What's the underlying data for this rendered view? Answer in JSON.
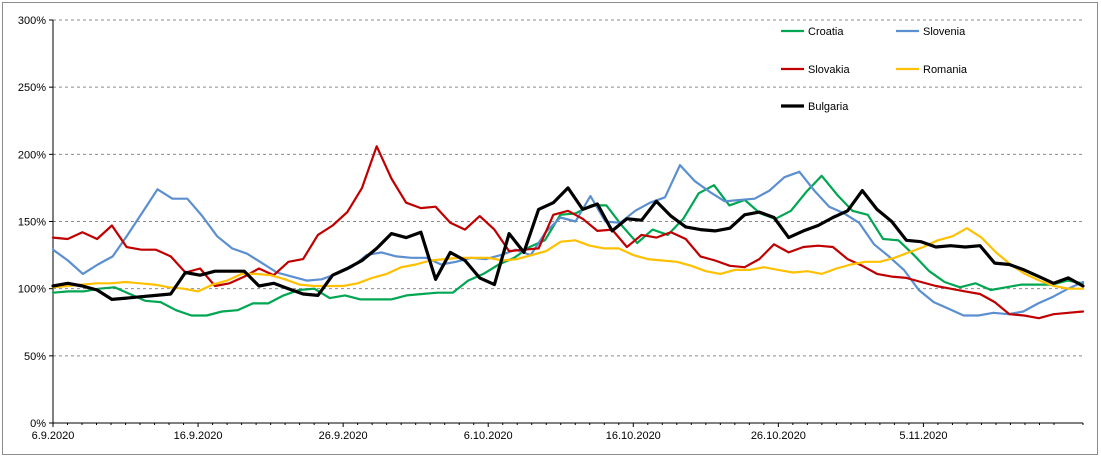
{
  "chart_data": {
    "type": "line",
    "title": "",
    "xlabel": "",
    "ylabel": "",
    "x_start": "2020-09-06",
    "x_end": "2020-11-16",
    "x_tick_labels": [
      "6.9.2020",
      "16.9.2020",
      "26.9.2020",
      "6.10.2020",
      "16.10.2020",
      "26.10.2020",
      "5.11.2020"
    ],
    "y_tick_labels": [
      "0%",
      "50%",
      "100%",
      "150%",
      "200%",
      "250%",
      "300%"
    ],
    "ylim": [
      0,
      300
    ],
    "y_unit": "%",
    "grid": "horizontal dashed",
    "legend_position": "top-right",
    "series": [
      {
        "name": "Croatia",
        "color": "#00a651",
        "stroke": "normal",
        "values": [
          97,
          98,
          98,
          100,
          101,
          96,
          91,
          90,
          84,
          80,
          80,
          83,
          84,
          89,
          89,
          95,
          99,
          100,
          93,
          95,
          92,
          92,
          92,
          95,
          96,
          97,
          97,
          106,
          111,
          118,
          123,
          131,
          136,
          155,
          156,
          162,
          162,
          147,
          134,
          144,
          140,
          152,
          171,
          177,
          162,
          166,
          156,
          152,
          158,
          172,
          184,
          170,
          158,
          155,
          137,
          136,
          125,
          113,
          105,
          101,
          104,
          99,
          101,
          103,
          103,
          103,
          106,
          104
        ]
      },
      {
        "name": "Slovenia",
        "color": "#5b8fd0",
        "stroke": "normal",
        "values": [
          129,
          121,
          111,
          118,
          124,
          140,
          157,
          174,
          167,
          167,
          154,
          139,
          130,
          126,
          119,
          112,
          109,
          106,
          107,
          111,
          116,
          125,
          127,
          124,
          123,
          123,
          118,
          120,
          123,
          122,
          125,
          129,
          125,
          142,
          153,
          150,
          169,
          150,
          149,
          158,
          164,
          168,
          192,
          180,
          172,
          165,
          166,
          167,
          173,
          183,
          187,
          173,
          161,
          156,
          149,
          133,
          124,
          114,
          99,
          90,
          85,
          80,
          80,
          82,
          81,
          83,
          89,
          94,
          100,
          105
        ]
      },
      {
        "name": "Slovakia",
        "color": "#c00000",
        "stroke": "normal",
        "values": [
          138,
          137,
          142,
          137,
          147,
          131,
          129,
          129,
          124,
          112,
          115,
          102,
          104,
          109,
          115,
          110,
          120,
          122,
          140,
          147,
          157,
          175,
          206,
          182,
          164,
          160,
          161,
          149,
          144,
          154,
          144,
          128,
          129,
          130,
          155,
          158,
          152,
          143,
          144,
          131,
          140,
          138,
          142,
          137,
          124,
          121,
          117,
          116,
          122,
          133,
          127,
          131,
          132,
          131,
          122,
          117,
          111,
          109,
          108,
          105,
          102,
          100,
          98,
          96,
          90,
          81,
          80,
          78,
          81,
          82,
          83
        ]
      },
      {
        "name": "Romania",
        "color": "#ffc000",
        "stroke": "normal",
        "values": [
          101,
          102,
          103,
          104,
          104,
          105,
          104,
          103,
          101,
          100,
          98,
          103,
          106,
          111,
          111,
          110,
          107,
          103,
          102,
          102,
          102,
          104,
          108,
          111,
          116,
          118,
          121,
          122,
          123,
          123,
          123,
          121,
          122,
          125,
          128,
          135,
          136,
          132,
          130,
          130,
          125,
          122,
          121,
          120,
          117,
          113,
          111,
          114,
          114,
          116,
          114,
          112,
          113,
          111,
          115,
          118,
          120,
          120,
          123,
          127,
          131,
          136,
          139,
          145,
          138,
          127,
          118,
          111,
          106,
          102,
          100,
          100
        ]
      },
      {
        "name": "Bulgaria",
        "color": "#000000",
        "stroke": "bold",
        "values": [
          102,
          104,
          102,
          99,
          92,
          93,
          94,
          95,
          96,
          112,
          110,
          113,
          113,
          113,
          102,
          104,
          100,
          96,
          95,
          110,
          115,
          121,
          130,
          141,
          138,
          142,
          107,
          127,
          121,
          108,
          103,
          141,
          127,
          159,
          164,
          175,
          159,
          163,
          143,
          152,
          151,
          165,
          154,
          146,
          144,
          143,
          145,
          155,
          157,
          153,
          138,
          143,
          147,
          153,
          158,
          173,
          159,
          150,
          136,
          135,
          131,
          132,
          131,
          132,
          119,
          118,
          114,
          109,
          104,
          108,
          102
        ]
      }
    ]
  }
}
